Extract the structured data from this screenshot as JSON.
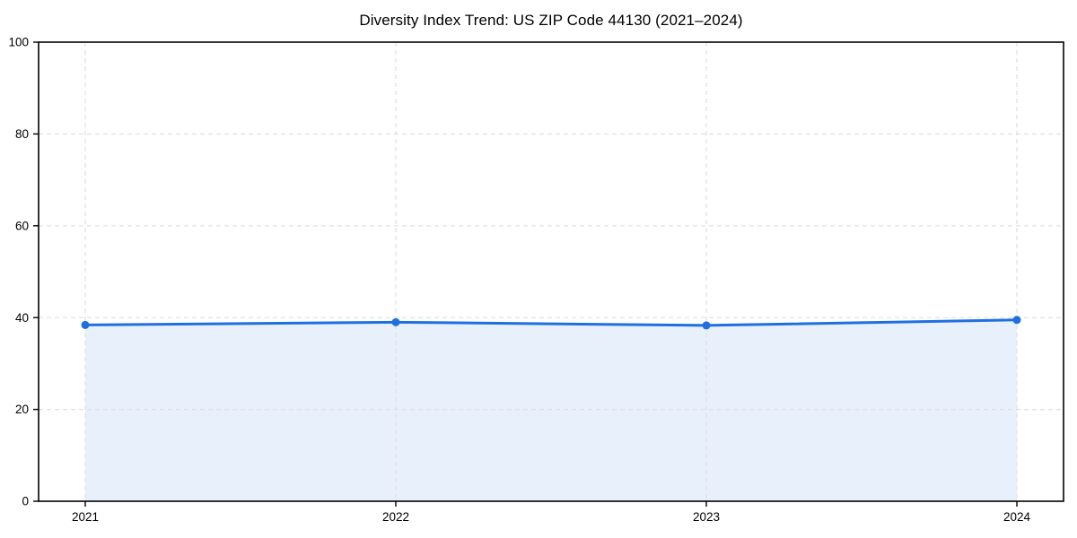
{
  "chart_data": {
    "type": "line",
    "title": "Diversity Index Trend: US ZIP Code 44130 (2021–2024)",
    "x": [
      "2021",
      "2022",
      "2023",
      "2024"
    ],
    "series": [
      {
        "name": "Diversity Index",
        "values": [
          38.4,
          39.0,
          38.3,
          39.5
        ]
      }
    ],
    "xlabel": "",
    "ylabel": "",
    "ylim": [
      0,
      100
    ],
    "yticks": [
      0,
      20,
      40,
      60,
      80,
      100
    ],
    "grid": true,
    "grid_style": "dashed",
    "legend": "none",
    "style": {
      "line_color": "#1f6fe0",
      "marker_color": "#1f6fe0",
      "fill_color": "#e8f0fc",
      "grid_color": "#e0e0e0",
      "axis_color": "#000000",
      "tick_label_color": "#000000",
      "background": "#ffffff",
      "markers": true,
      "area_fill": true
    }
  }
}
